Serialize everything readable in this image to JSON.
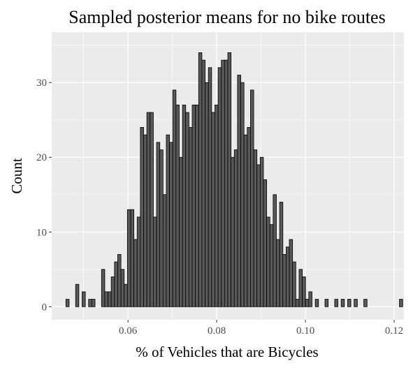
{
  "chart_data": {
    "type": "histogram",
    "title": "Sampled posterior means for no bike routes",
    "xlabel": "% of Vehicles that are Bicycles",
    "ylabel": "Count",
    "xlim": [
      0.0428,
      0.1222
    ],
    "ylim": [
      -1.75,
      36.75
    ],
    "x_ticks": [
      0.06,
      0.08,
      0.1,
      0.12
    ],
    "x_tick_labels": [
      "0.06",
      "0.08",
      "0.10",
      "0.12"
    ],
    "y_ticks": [
      0,
      10,
      20,
      30
    ],
    "y_tick_labels": [
      "0",
      "10",
      "20",
      "30"
    ],
    "grid": true,
    "legend": "none",
    "colors": {
      "panel_background": "#ebebeb",
      "grid": "#ffffff",
      "bar_fill": "#595959",
      "bar_outline": "#000000"
    },
    "bin_start": 0.046,
    "bin_width": 0.00073,
    "counts": [
      1,
      0,
      0,
      3,
      0,
      2,
      0,
      1,
      1,
      0,
      0,
      5,
      2,
      2,
      4,
      6,
      7,
      5,
      3,
      13,
      13,
      9,
      12,
      24,
      23,
      26,
      26,
      12,
      22,
      21,
      15,
      23,
      22,
      29,
      27,
      20,
      27,
      26,
      24,
      27,
      27,
      34,
      33,
      30,
      32,
      26,
      27,
      32,
      33,
      33,
      34,
      20,
      21,
      31,
      30,
      23,
      24,
      29,
      21,
      19,
      20,
      17,
      12,
      11,
      15,
      9,
      14,
      7,
      8,
      9,
      6,
      1,
      5,
      4,
      1,
      2,
      0,
      1,
      0,
      0,
      1,
      0,
      0,
      1,
      0,
      1,
      0,
      1,
      0,
      1,
      0,
      0,
      1,
      0,
      0,
      0,
      0,
      0,
      0,
      0,
      0,
      0,
      0,
      1
    ]
  }
}
